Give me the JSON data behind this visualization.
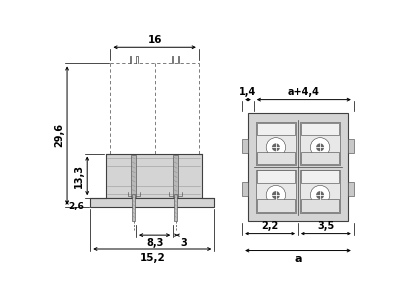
{
  "bg_color": "#ffffff",
  "lc": "#404040",
  "dc": "#000000",
  "gc": "#c0c0c0",
  "fig_w": 4.0,
  "fig_h": 3.04,
  "dpi": 100,
  "dims_left": {
    "d16": "16",
    "d296": "29,6",
    "d133": "13,3",
    "d26": "2,6",
    "d83": "8,3",
    "d3": "3",
    "d152": "15,2"
  },
  "dims_right": {
    "d14": "1,4",
    "da44": "a+4,4",
    "d22": "2,2",
    "d35": "3,5",
    "da": "a"
  }
}
